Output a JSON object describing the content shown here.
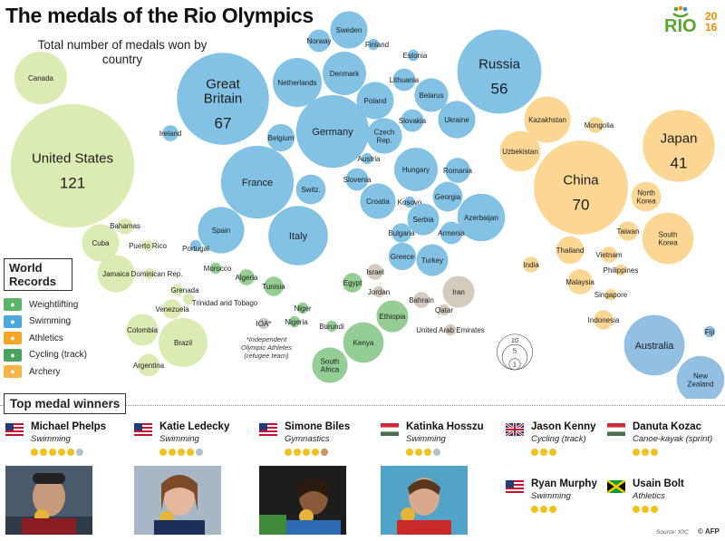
{
  "header": {
    "title": "The medals of the Rio Olympics",
    "subtitle": "Total number of medals won by country"
  },
  "logo": {
    "text": "RIO",
    "year_top": "20",
    "year_bottom": "16"
  },
  "colors": {
    "europe": "#7cbfe3",
    "americas": "#d9eab0",
    "asia": "#fbd58d",
    "africa": "#8fcb8e",
    "mideast": "#d2c8bc",
    "oceania": "#8cbce0",
    "other": "#c8c8c8"
  },
  "countries": [
    {
      "name": "United States",
      "medals": 121,
      "region": "americas",
      "show_value": true
    },
    {
      "name": "Canada",
      "medals": 22,
      "region": "americas"
    },
    {
      "name": "Cuba",
      "medals": 11,
      "region": "americas"
    },
    {
      "name": "Jamaica",
      "medals": 11,
      "region": "americas"
    },
    {
      "name": "Bahamas",
      "medals": 2,
      "region": "americas"
    },
    {
      "name": "Puerto Rico",
      "medals": 1,
      "region": "americas"
    },
    {
      "name": "Dominican Rep.",
      "medals": 1,
      "region": "americas"
    },
    {
      "name": "Grenada",
      "medals": 1,
      "region": "americas"
    },
    {
      "name": "Trinidad and Tobago",
      "medals": 1,
      "region": "americas"
    },
    {
      "name": "Venezuela",
      "medals": 3,
      "region": "americas"
    },
    {
      "name": "Colombia",
      "medals": 8,
      "region": "americas"
    },
    {
      "name": "Brazil",
      "medals": 19,
      "region": "americas"
    },
    {
      "name": "Argentina",
      "medals": 4,
      "region": "americas"
    },
    {
      "name": "Great Britain",
      "medals": 67,
      "region": "europe",
      "show_value": true
    },
    {
      "name": "Germany",
      "medals": 42,
      "region": "europe"
    },
    {
      "name": "France",
      "medals": 42,
      "region": "europe"
    },
    {
      "name": "Italy",
      "medals": 28,
      "region": "europe"
    },
    {
      "name": "Russia",
      "medals": 56,
      "region": "europe",
      "show_value": true
    },
    {
      "name": "Netherlands",
      "medals": 19,
      "region": "europe"
    },
    {
      "name": "Sweden",
      "medals": 11,
      "region": "europe"
    },
    {
      "name": "Norway",
      "medals": 4,
      "region": "europe"
    },
    {
      "name": "Finland",
      "medals": 1,
      "region": "europe"
    },
    {
      "name": "Denmark",
      "medals": 15,
      "region": "europe"
    },
    {
      "name": "Estonia",
      "medals": 1,
      "region": "europe"
    },
    {
      "name": "Lithuania",
      "medals": 4,
      "region": "europe"
    },
    {
      "name": "Poland",
      "medals": 11,
      "region": "europe"
    },
    {
      "name": "Belarus",
      "medals": 9,
      "region": "europe"
    },
    {
      "name": "Ireland",
      "medals": 2,
      "region": "europe"
    },
    {
      "name": "Belgium",
      "medals": 6,
      "region": "europe"
    },
    {
      "name": "Czech Rep.",
      "medals": 10,
      "region": "europe"
    },
    {
      "name": "Slovakia",
      "medals": 4,
      "region": "europe"
    },
    {
      "name": "Ukraine",
      "medals": 11,
      "region": "europe"
    },
    {
      "name": "Austria",
      "medals": 1,
      "region": "europe"
    },
    {
      "name": "Switz.",
      "medals": 7,
      "region": "europe"
    },
    {
      "name": "Slovenia",
      "medals": 4,
      "region": "europe"
    },
    {
      "name": "Hungary",
      "medals": 15,
      "region": "europe"
    },
    {
      "name": "Romania",
      "medals": 5,
      "region": "europe"
    },
    {
      "name": "Spain",
      "medals": 17,
      "region": "europe"
    },
    {
      "name": "Portugal",
      "medals": 1,
      "region": "europe"
    },
    {
      "name": "Croatia",
      "medals": 10,
      "region": "europe"
    },
    {
      "name": "Kosovo",
      "medals": 1,
      "region": "europe"
    },
    {
      "name": "Georgia",
      "medals": 7,
      "region": "europe"
    },
    {
      "name": "Serbia",
      "medals": 8,
      "region": "europe"
    },
    {
      "name": "Azerbaijan",
      "medals": 18,
      "region": "europe"
    },
    {
      "name": "Bulgaria",
      "medals": 3,
      "region": "europe"
    },
    {
      "name": "Armenia",
      "medals": 4,
      "region": "europe"
    },
    {
      "name": "Greece",
      "medals": 6,
      "region": "europe"
    },
    {
      "name": "Turkey",
      "medals": 8,
      "region": "europe"
    },
    {
      "name": "Israel",
      "medals": 2,
      "region": "mideast"
    },
    {
      "name": "Jordan",
      "medals": 1,
      "region": "mideast"
    },
    {
      "name": "Bahrain",
      "medals": 2,
      "region": "mideast"
    },
    {
      "name": "Iran",
      "medals": 8,
      "region": "mideast"
    },
    {
      "name": "Qatar",
      "medals": 1,
      "region": "mideast"
    },
    {
      "name": "United Arab Emirates",
      "medals": 1,
      "region": "mideast"
    },
    {
      "name": "Morocco",
      "medals": 1,
      "region": "africa"
    },
    {
      "name": "Algeria",
      "medals": 2,
      "region": "africa"
    },
    {
      "name": "Tunisia",
      "medals": 3,
      "region": "africa"
    },
    {
      "name": "Egypt",
      "medals": 3,
      "region": "africa"
    },
    {
      "name": "Niger",
      "medals": 1,
      "region": "africa"
    },
    {
      "name": "Nigeria",
      "medals": 1,
      "region": "africa"
    },
    {
      "name": "Burundi",
      "medals": 1,
      "region": "africa"
    },
    {
      "name": "Ethiopia",
      "medals": 8,
      "region": "africa"
    },
    {
      "name": "Kenya",
      "medals": 13,
      "region": "africa"
    },
    {
      "name": "South Africa",
      "medals": 10,
      "region": "africa"
    },
    {
      "name": "IOA*",
      "medals": 1,
      "region": "other"
    },
    {
      "name": "Kazakhstan",
      "medals": 17,
      "region": "asia"
    },
    {
      "name": "Mongolia",
      "medals": 2,
      "region": "asia"
    },
    {
      "name": "Uzbekistan",
      "medals": 13,
      "region": "asia"
    },
    {
      "name": "China",
      "medals": 70,
      "region": "asia",
      "show_value": true
    },
    {
      "name": "Japan",
      "medals": 41,
      "region": "asia",
      "show_value": true
    },
    {
      "name": "North Korea",
      "medals": 7,
      "region": "asia"
    },
    {
      "name": "South Korea",
      "medals": 21,
      "region": "asia"
    },
    {
      "name": "Taiwan",
      "medals": 3,
      "region": "asia"
    },
    {
      "name": "Thailand",
      "medals": 6,
      "region": "asia"
    },
    {
      "name": "Vietnam",
      "medals": 2,
      "region": "asia"
    },
    {
      "name": "Philippines",
      "medals": 1,
      "region": "asia"
    },
    {
      "name": "India",
      "medals": 2,
      "region": "asia"
    },
    {
      "name": "Malaysia",
      "medals": 5,
      "region": "asia"
    },
    {
      "name": "Singapore",
      "medals": 1,
      "region": "asia"
    },
    {
      "name": "Indonesia",
      "medals": 3,
      "region": "asia"
    },
    {
      "name": "Australia",
      "medals": 29,
      "region": "oceania"
    },
    {
      "name": "Fiji",
      "medals": 1,
      "region": "oceania"
    },
    {
      "name": "New Zealand",
      "medals": 18,
      "region": "oceania"
    }
  ],
  "scale_legend": {
    "values": [
      "10",
      "5",
      "1"
    ]
  },
  "ioa_note": "*Independent Olympic Athletes (refugee team)",
  "world_records": {
    "title": "World Records",
    "items": [
      {
        "label": "Weightlifting",
        "color": "#5cb46a"
      },
      {
        "label": "Swimming",
        "color": "#4aa8da"
      },
      {
        "label": "Athletics",
        "color": "#f5a623"
      },
      {
        "label": "Cycling (track)",
        "color": "#4aa25e"
      },
      {
        "label": "Archery",
        "color": "#f7b447"
      }
    ]
  },
  "top_medal_winners": {
    "title": "Top medal winners",
    "athletes": [
      {
        "name": "Michael Phelps",
        "sport": "Swimming",
        "flag": "USA",
        "medals": [
          "g",
          "g",
          "g",
          "g",
          "g",
          "s"
        ]
      },
      {
        "name": "Katie Ledecky",
        "sport": "Swimming",
        "flag": "USA",
        "medals": [
          "g",
          "g",
          "g",
          "g",
          "s"
        ]
      },
      {
        "name": "Simone Biles",
        "sport": "Gymnastics",
        "flag": "USA",
        "medals": [
          "g",
          "g",
          "g",
          "g",
          "b"
        ]
      },
      {
        "name": "Katinka Hosszu",
        "sport": "Swimming",
        "flag": "Hungary",
        "medals": [
          "g",
          "g",
          "g",
          "s"
        ]
      },
      {
        "name": "Jason Kenny",
        "sport": "Cycling (track)",
        "flag": "UK",
        "medals": [
          "g",
          "g",
          "g"
        ]
      },
      {
        "name": "Danuta Kozac",
        "sport": "Canoe-kayak (sprint)",
        "flag": "Hungary",
        "medals": [
          "g",
          "g",
          "g"
        ]
      },
      {
        "name": "Ryan Murphy",
        "sport": "Swimming",
        "flag": "USA",
        "medals": [
          "g",
          "g",
          "g"
        ]
      },
      {
        "name": "Usain Bolt",
        "sport": "Athletics",
        "flag": "Jamaica",
        "medals": [
          "g",
          "g",
          "g"
        ]
      }
    ]
  },
  "footer": {
    "source": "Source: IOC",
    "credit": "© AFP"
  }
}
